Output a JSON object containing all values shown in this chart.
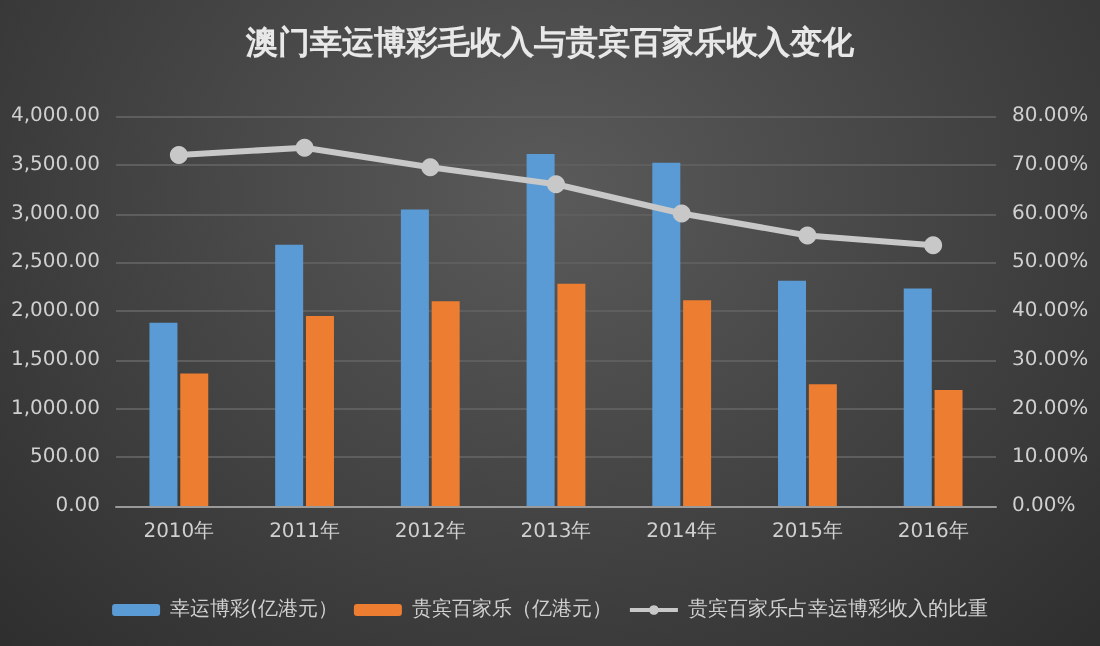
{
  "chart_data": {
    "type": "bar",
    "title": "澳门幸运博彩毛收入与贵宾百家乐收入变化",
    "categories": [
      "2010年",
      "2011年",
      "2012年",
      "2013年",
      "2014年",
      "2015年",
      "2016年"
    ],
    "series": [
      {
        "name": "幸运博彩(亿港元）",
        "color": "#5b9bd5",
        "values": [
          1880,
          2680,
          3040,
          3610,
          3520,
          2310,
          2230
        ]
      },
      {
        "name": "贵宾百家乐（亿港元）",
        "color": "#ed7d31",
        "values": [
          1360,
          1950,
          2100,
          2280,
          2110,
          1250,
          1190
        ]
      },
      {
        "name": "贵宾百家乐占幸运博彩收入的比重",
        "type": "line",
        "axis": "y2",
        "color": "#c8c8c8",
        "marker": "circle",
        "values": [
          72,
          73.5,
          69.5,
          66,
          60,
          55.5,
          53.5
        ]
      }
    ],
    "ylim": [
      0,
      4000
    ],
    "yticks": [
      {
        "value": 0,
        "label": "0.00"
      },
      {
        "value": 500,
        "label": "500.00"
      },
      {
        "value": 1000,
        "label": "1,000.00"
      },
      {
        "value": 1500,
        "label": "1,500.00"
      },
      {
        "value": 2000,
        "label": "2,000.00"
      },
      {
        "value": 2500,
        "label": "2,500.00"
      },
      {
        "value": 3000,
        "label": "3,000.00"
      },
      {
        "value": 3500,
        "label": "3,500.00"
      },
      {
        "value": 4000,
        "label": "4,000.00"
      }
    ],
    "y2lim": [
      0,
      80
    ],
    "y2ticks": [
      {
        "value": 0,
        "label": "0.00%"
      },
      {
        "value": 10,
        "label": "10.00%"
      },
      {
        "value": 20,
        "label": "20.00%"
      },
      {
        "value": 30,
        "label": "30.00%"
      },
      {
        "value": 40,
        "label": "40.00%"
      },
      {
        "value": 50,
        "label": "50.00%"
      },
      {
        "value": 60,
        "label": "60.00%"
      },
      {
        "value": 70,
        "label": "70.00%"
      },
      {
        "value": 80,
        "label": "80.00%"
      }
    ],
    "grid": "y",
    "legend": "bottom"
  }
}
